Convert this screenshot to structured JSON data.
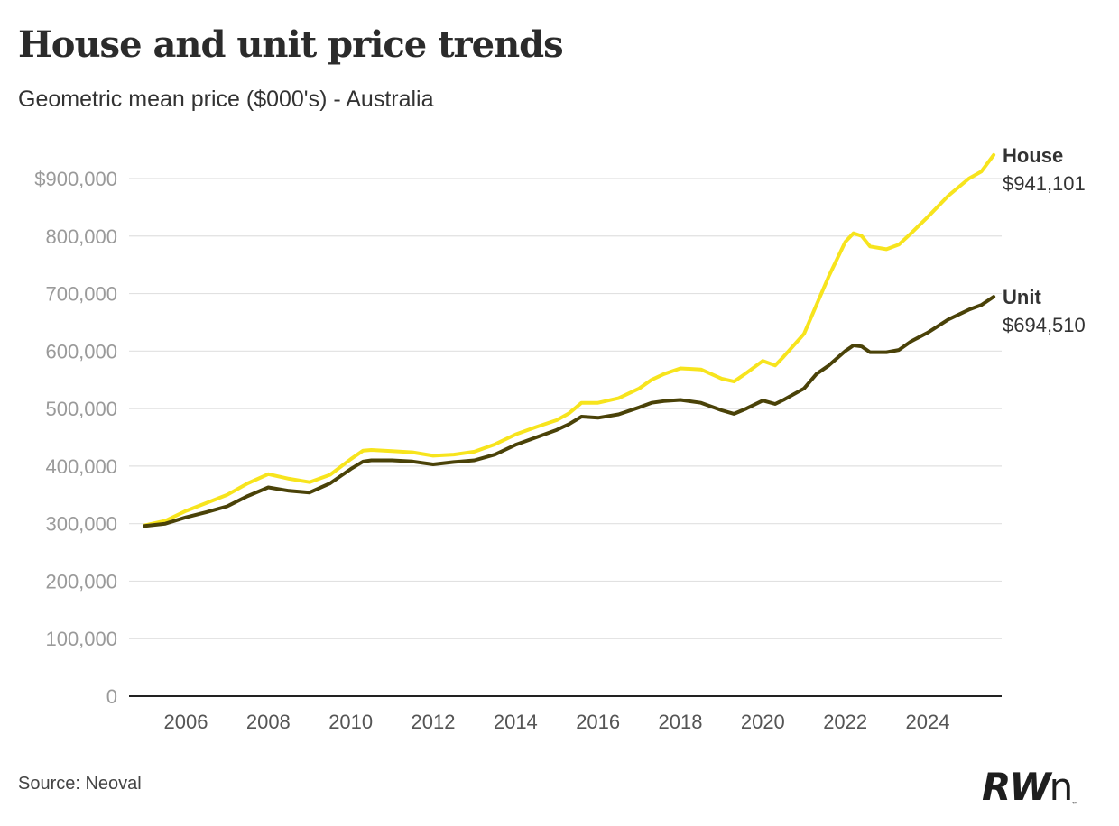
{
  "header": {
    "title": "House and unit price trends",
    "subtitle": "Geometric mean price ($000's) - Australia"
  },
  "footer": {
    "source": "Source: Neoval",
    "logo_text": "RWn"
  },
  "chart_data": {
    "type": "line",
    "y_ticks": [
      "0",
      "100,000",
      "200,000",
      "300,000",
      "400,000",
      "500,000",
      "600,000",
      "700,000",
      "800,000",
      "$900,000"
    ],
    "y_tick_values": [
      0,
      100000,
      200000,
      300000,
      400000,
      500000,
      600000,
      700000,
      800000,
      900000
    ],
    "x_ticks": [
      "2006",
      "2008",
      "2010",
      "2012",
      "2014",
      "2016",
      "2018",
      "2020",
      "2022",
      "2024"
    ],
    "x_tick_values": [
      2006,
      2008,
      2010,
      2012,
      2014,
      2016,
      2018,
      2020,
      2022,
      2024
    ],
    "ylim": [
      0,
      950000
    ],
    "xlim": [
      2004.6,
      2025.8
    ],
    "grid": true,
    "series": [
      {
        "name": "House",
        "label_value": "$941,101",
        "color": "#f7e41d",
        "x": [
          2005.0,
          2005.5,
          2006.0,
          2006.5,
          2007.0,
          2007.5,
          2008.0,
          2008.5,
          2009.0,
          2009.5,
          2010.0,
          2010.3,
          2010.5,
          2011.0,
          2011.5,
          2012.0,
          2012.5,
          2013.0,
          2013.5,
          2014.0,
          2014.5,
          2015.0,
          2015.3,
          2015.6,
          2016.0,
          2016.5,
          2017.0,
          2017.3,
          2017.6,
          2018.0,
          2018.5,
          2019.0,
          2019.3,
          2019.6,
          2020.0,
          2020.3,
          2020.5,
          2021.0,
          2021.3,
          2021.6,
          2022.0,
          2022.2,
          2022.4,
          2022.6,
          2023.0,
          2023.3,
          2023.6,
          2024.0,
          2024.5,
          2025.0,
          2025.3,
          2025.6
        ],
        "y": [
          297000,
          305000,
          322000,
          336000,
          350000,
          370000,
          386000,
          378000,
          372000,
          385000,
          412000,
          427000,
          428000,
          426000,
          424000,
          418000,
          420000,
          425000,
          438000,
          455000,
          468000,
          480000,
          492000,
          510000,
          510000,
          518000,
          535000,
          550000,
          560000,
          570000,
          568000,
          552000,
          547000,
          562000,
          583000,
          575000,
          590000,
          630000,
          680000,
          730000,
          790000,
          805000,
          800000,
          782000,
          777000,
          785000,
          805000,
          833000,
          870000,
          900000,
          912000,
          941000
        ]
      },
      {
        "name": "Unit",
        "label_value": "$694,510",
        "color": "#4a4208",
        "x": [
          2005.0,
          2005.5,
          2006.0,
          2006.5,
          2007.0,
          2007.5,
          2008.0,
          2008.5,
          2009.0,
          2009.5,
          2010.0,
          2010.3,
          2010.5,
          2011.0,
          2011.5,
          2012.0,
          2012.5,
          2013.0,
          2013.5,
          2014.0,
          2014.5,
          2015.0,
          2015.3,
          2015.6,
          2016.0,
          2016.5,
          2017.0,
          2017.3,
          2017.6,
          2018.0,
          2018.5,
          2019.0,
          2019.3,
          2019.6,
          2020.0,
          2020.3,
          2020.5,
          2021.0,
          2021.3,
          2021.6,
          2022.0,
          2022.2,
          2022.4,
          2022.6,
          2023.0,
          2023.3,
          2023.6,
          2024.0,
          2024.5,
          2025.0,
          2025.3,
          2025.6
        ],
        "y": [
          296000,
          300000,
          311000,
          320000,
          330000,
          348000,
          363000,
          357000,
          354000,
          370000,
          395000,
          408000,
          410000,
          410000,
          408000,
          403000,
          407000,
          410000,
          420000,
          437000,
          450000,
          463000,
          473000,
          486000,
          484000,
          490000,
          502000,
          510000,
          513000,
          515000,
          510000,
          497000,
          491000,
          500000,
          514000,
          508000,
          515000,
          535000,
          560000,
          575000,
          600000,
          610000,
          608000,
          598000,
          598000,
          602000,
          617000,
          632000,
          655000,
          672000,
          680000,
          694500
        ]
      }
    ]
  }
}
